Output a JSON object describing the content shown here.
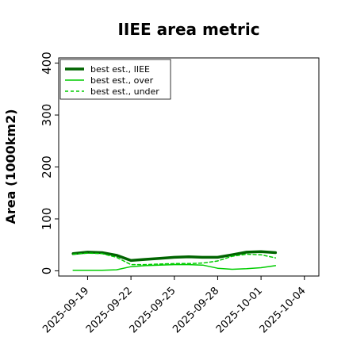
{
  "chart_data": {
    "type": "line",
    "title": "IIEE area metric",
    "ylabel": "Area (1000km2)",
    "xlabel": "",
    "ylim": [
      -10,
      410
    ],
    "xlim": [
      "2025-09-17",
      "2025-10-05"
    ],
    "yticks": [
      0,
      100,
      200,
      300,
      400
    ],
    "xticks": [
      "2025-09-19",
      "2025-09-22",
      "2025-09-25",
      "2025-09-28",
      "2025-10-01",
      "2025-10-04"
    ],
    "grid": false,
    "legend_position": "top-left",
    "x": [
      "2025-09-18",
      "2025-09-19",
      "2025-09-20",
      "2025-09-21",
      "2025-09-22",
      "2025-09-23",
      "2025-09-24",
      "2025-09-25",
      "2025-09-26",
      "2025-09-27",
      "2025-09-28",
      "2025-09-29",
      "2025-09-30",
      "2025-10-01",
      "2025-10-02"
    ],
    "series": [
      {
        "name": "best est., IIEE",
        "color": "#006400",
        "style": "solid",
        "width": 3.5,
        "values": [
          33,
          36,
          35,
          30,
          20,
          22,
          24,
          26,
          27,
          26,
          26,
          31,
          36,
          37,
          35
        ]
      },
      {
        "name": "best est., over",
        "color": "#00cc00",
        "style": "solid",
        "width": 1.5,
        "values": [
          1,
          1,
          1,
          2,
          8,
          10,
          11,
          12,
          12,
          11,
          5,
          3,
          4,
          6,
          10
        ]
      },
      {
        "name": "best est., under",
        "color": "#00cc00",
        "style": "dashed",
        "width": 1.5,
        "values": [
          32,
          34,
          33,
          26,
          12,
          12,
          13,
          14,
          14,
          15,
          19,
          28,
          32,
          31,
          25
        ]
      }
    ]
  }
}
